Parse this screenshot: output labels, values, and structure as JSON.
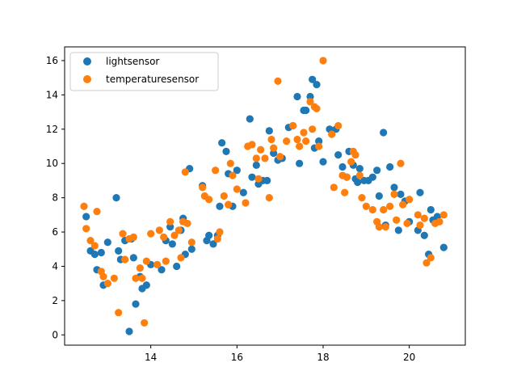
{
  "chart_data": {
    "type": "scatter",
    "title": "",
    "xlabel": "",
    "ylabel": "",
    "xlim": [
      12.0,
      21.3
    ],
    "ylim": [
      -0.6,
      16.8
    ],
    "xticks": [
      14,
      16,
      18,
      20
    ],
    "yticks": [
      0,
      2,
      4,
      6,
      8,
      10,
      12,
      14,
      16
    ],
    "grid": false,
    "legend": "upper left",
    "series": [
      {
        "name": "lightsensor",
        "color": "#1f77b4",
        "points": [
          [
            12.5,
            6.9
          ],
          [
            12.6,
            4.9
          ],
          [
            12.7,
            4.7
          ],
          [
            12.75,
            3.8
          ],
          [
            12.85,
            4.8
          ],
          [
            12.9,
            2.9
          ],
          [
            13.0,
            5.4
          ],
          [
            13.2,
            8.0
          ],
          [
            13.25,
            4.9
          ],
          [
            13.3,
            4.4
          ],
          [
            13.4,
            5.5
          ],
          [
            13.5,
            0.2
          ],
          [
            13.55,
            5.6
          ],
          [
            13.6,
            4.5
          ],
          [
            13.65,
            1.8
          ],
          [
            13.75,
            3.4
          ],
          [
            13.8,
            2.7
          ],
          [
            13.9,
            2.9
          ],
          [
            14.0,
            4.1
          ],
          [
            14.25,
            3.8
          ],
          [
            14.35,
            5.5
          ],
          [
            14.45,
            6.3
          ],
          [
            14.5,
            5.3
          ],
          [
            14.6,
            4.0
          ],
          [
            14.7,
            6.1
          ],
          [
            14.75,
            6.8
          ],
          [
            14.8,
            4.7
          ],
          [
            14.9,
            9.7
          ],
          [
            14.95,
            5.0
          ],
          [
            15.2,
            8.7
          ],
          [
            15.3,
            5.5
          ],
          [
            15.35,
            5.8
          ],
          [
            15.45,
            5.3
          ],
          [
            15.55,
            5.8
          ],
          [
            15.6,
            7.5
          ],
          [
            15.65,
            11.2
          ],
          [
            15.75,
            10.7
          ],
          [
            15.8,
            9.4
          ],
          [
            15.9,
            7.5
          ],
          [
            16.0,
            9.6
          ],
          [
            16.15,
            8.3
          ],
          [
            16.3,
            12.6
          ],
          [
            16.35,
            9.2
          ],
          [
            16.45,
            9.9
          ],
          [
            16.5,
            8.8
          ],
          [
            16.6,
            9.0
          ],
          [
            16.7,
            9.0
          ],
          [
            16.75,
            11.9
          ],
          [
            16.85,
            10.6
          ],
          [
            16.95,
            10.2
          ],
          [
            17.05,
            10.3
          ],
          [
            17.2,
            12.1
          ],
          [
            17.3,
            12.2
          ],
          [
            17.4,
            13.9
          ],
          [
            17.45,
            10.0
          ],
          [
            17.55,
            13.1
          ],
          [
            17.6,
            13.1
          ],
          [
            17.7,
            13.9
          ],
          [
            17.75,
            14.9
          ],
          [
            17.8,
            10.9
          ],
          [
            17.85,
            14.6
          ],
          [
            17.9,
            11.3
          ],
          [
            18.0,
            10.1
          ],
          [
            18.15,
            12.0
          ],
          [
            18.3,
            12.0
          ],
          [
            18.35,
            10.5
          ],
          [
            18.45,
            9.8
          ],
          [
            18.55,
            9.2
          ],
          [
            18.6,
            10.7
          ],
          [
            18.7,
            9.9
          ],
          [
            18.75,
            9.1
          ],
          [
            18.8,
            8.9
          ],
          [
            18.85,
            9.7
          ],
          [
            18.95,
            9.0
          ],
          [
            19.05,
            9.0
          ],
          [
            19.15,
            9.2
          ],
          [
            19.25,
            9.6
          ],
          [
            19.3,
            8.1
          ],
          [
            19.4,
            11.8
          ],
          [
            19.45,
            6.4
          ],
          [
            19.55,
            9.8
          ],
          [
            19.65,
            8.6
          ],
          [
            19.75,
            6.1
          ],
          [
            19.8,
            8.2
          ],
          [
            19.9,
            7.8
          ],
          [
            20.0,
            6.6
          ],
          [
            20.2,
            6.1
          ],
          [
            20.25,
            8.3
          ],
          [
            20.35,
            5.8
          ],
          [
            20.45,
            4.7
          ],
          [
            20.5,
            7.3
          ],
          [
            20.55,
            6.7
          ],
          [
            20.65,
            6.9
          ],
          [
            20.8,
            5.1
          ]
        ]
      },
      {
        "name": "temperaturesensor",
        "color": "#ff7f0e",
        "points": [
          [
            12.45,
            7.5
          ],
          [
            12.5,
            6.2
          ],
          [
            12.6,
            5.5
          ],
          [
            12.7,
            5.2
          ],
          [
            12.75,
            7.2
          ],
          [
            12.85,
            3.7
          ],
          [
            12.9,
            3.4
          ],
          [
            13.0,
            3.0
          ],
          [
            13.15,
            3.3
          ],
          [
            13.25,
            1.3
          ],
          [
            13.35,
            5.9
          ],
          [
            13.4,
            4.4
          ],
          [
            13.5,
            5.6
          ],
          [
            13.6,
            5.7
          ],
          [
            13.65,
            3.3
          ],
          [
            13.75,
            3.9
          ],
          [
            13.8,
            3.3
          ],
          [
            13.85,
            0.7
          ],
          [
            13.9,
            4.3
          ],
          [
            14.0,
            5.9
          ],
          [
            14.15,
            4.1
          ],
          [
            14.2,
            6.1
          ],
          [
            14.3,
            5.7
          ],
          [
            14.35,
            4.3
          ],
          [
            14.45,
            6.6
          ],
          [
            14.55,
            5.8
          ],
          [
            14.65,
            6.1
          ],
          [
            14.7,
            4.5
          ],
          [
            14.75,
            6.6
          ],
          [
            14.8,
            9.5
          ],
          [
            14.85,
            6.5
          ],
          [
            14.95,
            5.4
          ],
          [
            15.2,
            8.6
          ],
          [
            15.25,
            8.1
          ],
          [
            15.35,
            7.9
          ],
          [
            15.5,
            9.6
          ],
          [
            15.55,
            5.6
          ],
          [
            15.6,
            6.0
          ],
          [
            15.7,
            8.1
          ],
          [
            15.8,
            7.6
          ],
          [
            15.85,
            10.0
          ],
          [
            15.9,
            9.3
          ],
          [
            16.0,
            8.5
          ],
          [
            16.2,
            7.7
          ],
          [
            16.25,
            11.0
          ],
          [
            16.35,
            11.1
          ],
          [
            16.45,
            10.3
          ],
          [
            16.5,
            9.1
          ],
          [
            16.55,
            10.8
          ],
          [
            16.65,
            10.3
          ],
          [
            16.75,
            8.0
          ],
          [
            16.8,
            11.4
          ],
          [
            16.85,
            10.9
          ],
          [
            16.95,
            14.8
          ],
          [
            17.0,
            10.4
          ],
          [
            17.15,
            11.3
          ],
          [
            17.3,
            12.2
          ],
          [
            17.4,
            11.4
          ],
          [
            17.45,
            11.0
          ],
          [
            17.55,
            11.8
          ],
          [
            17.6,
            11.3
          ],
          [
            17.7,
            13.6
          ],
          [
            17.75,
            12.0
          ],
          [
            17.8,
            13.3
          ],
          [
            17.85,
            13.2
          ],
          [
            17.9,
            11.0
          ],
          [
            18.0,
            16.0
          ],
          [
            18.2,
            11.7
          ],
          [
            18.25,
            8.6
          ],
          [
            18.35,
            12.2
          ],
          [
            18.45,
            9.3
          ],
          [
            18.5,
            8.3
          ],
          [
            18.55,
            9.2
          ],
          [
            18.65,
            10.1
          ],
          [
            18.7,
            10.7
          ],
          [
            18.75,
            10.5
          ],
          [
            18.85,
            9.3
          ],
          [
            18.9,
            8.0
          ],
          [
            19.0,
            7.5
          ],
          [
            19.15,
            7.3
          ],
          [
            19.25,
            6.6
          ],
          [
            19.3,
            6.3
          ],
          [
            19.4,
            7.3
          ],
          [
            19.45,
            6.3
          ],
          [
            19.55,
            7.5
          ],
          [
            19.65,
            8.2
          ],
          [
            19.7,
            6.7
          ],
          [
            19.8,
            10.0
          ],
          [
            19.85,
            7.6
          ],
          [
            19.95,
            6.5
          ],
          [
            20.0,
            7.9
          ],
          [
            20.2,
            7.0
          ],
          [
            20.25,
            6.4
          ],
          [
            20.35,
            6.8
          ],
          [
            20.4,
            4.2
          ],
          [
            20.5,
            4.5
          ],
          [
            20.6,
            6.5
          ],
          [
            20.7,
            6.6
          ],
          [
            20.8,
            7.0
          ]
        ]
      }
    ]
  }
}
